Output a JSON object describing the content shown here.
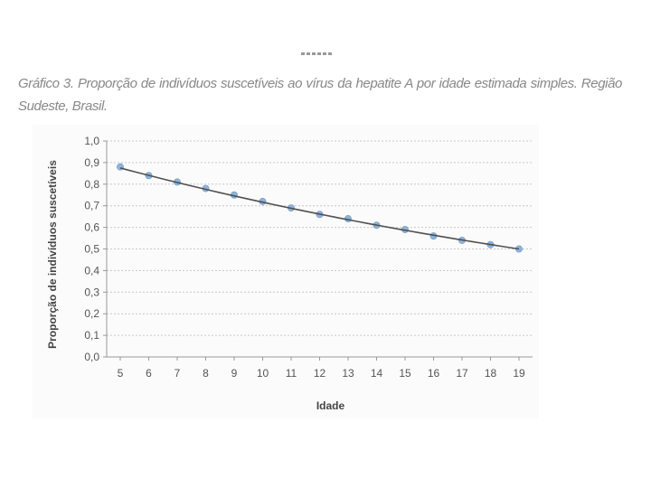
{
  "caption": "Gráfico 3. Proporção de indivíduos suscetíveis ao vírus da hepatite A por idade estimada simples. Região Sudeste, Brasil.",
  "colors": {
    "line": "#505050",
    "marker": "#8fb3d9",
    "grid": "#c8c8c8",
    "axis": "#999999"
  },
  "chart_data": {
    "type": "line",
    "title": "",
    "xlabel": "Idade",
    "ylabel": "Proporção de indivíduos suscetíveis",
    "x": [
      5,
      6,
      7,
      8,
      9,
      10,
      11,
      12,
      13,
      14,
      15,
      16,
      17,
      18,
      19
    ],
    "x_tick_labels": [
      "5",
      "6",
      "7",
      "8",
      "9",
      "10",
      "11",
      "12",
      "13",
      "14",
      "15",
      "16",
      "17",
      "18",
      "19"
    ],
    "series": [
      {
        "values": [
          0.88,
          0.84,
          0.81,
          0.78,
          0.75,
          0.72,
          0.69,
          0.66,
          0.64,
          0.61,
          0.59,
          0.56,
          0.54,
          0.52,
          0.5
        ],
        "marker": "circle",
        "trendline": [
          0.875,
          0.5
        ]
      }
    ],
    "ylim": [
      0,
      1
    ],
    "y_ticks": [
      0,
      0.1,
      0.2,
      0.3,
      0.4,
      0.5,
      0.6,
      0.7,
      0.8,
      0.9,
      1.0
    ],
    "y_tick_labels": [
      "0,0",
      "0,1",
      "0,2",
      "0,3",
      "0,4",
      "0,5",
      "0,6",
      "0,7",
      "0,8",
      "0,9",
      "1,0"
    ],
    "grid": "horizontal-dotted",
    "legend": "none"
  }
}
